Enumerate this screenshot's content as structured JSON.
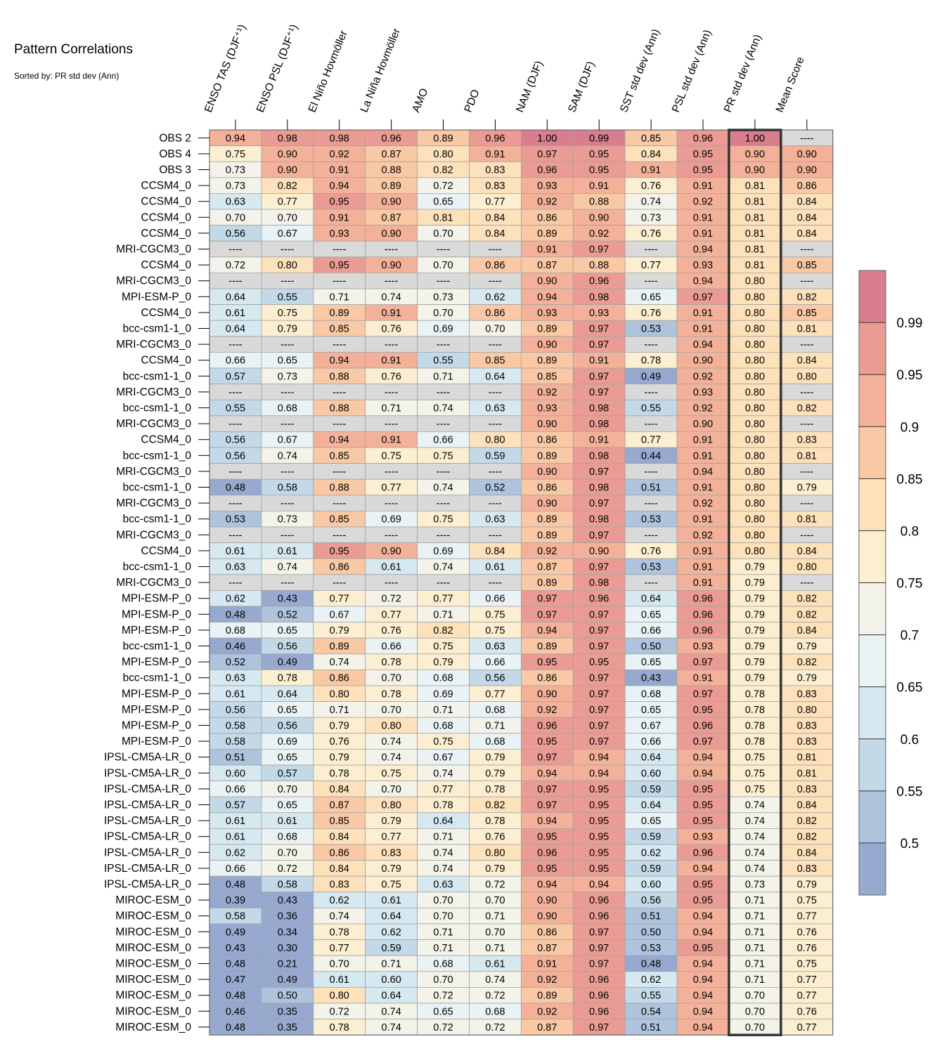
{
  "chart_data": {
    "type": "heatmap",
    "title": "Pattern Correlations",
    "subtitle": "Sorted by: PR std dev (Ann)",
    "missing_label": "----",
    "columns": [
      "ENSO TAS (DJF⁺¹)",
      "ENSO PSL (DJF⁺¹)",
      "El Niño Hovmöller",
      "La Niña Hovmöller",
      "AMO",
      "PDO",
      "NAM (DJF)",
      "SAM (DJF)",
      "SST std dev (Ann)",
      "PSL std dev (Ann)",
      "PR std dev (Ann)",
      "Mean Score"
    ],
    "highlighted_column": "PR std dev (Ann)",
    "rows": [
      "OBS 2",
      "OBS 4",
      "OBS 3",
      "CCSM4_0",
      "CCSM4_0",
      "CCSM4_0",
      "CCSM4_0",
      "MRI-CGCM3_0",
      "CCSM4_0",
      "MRI-CGCM3_0",
      "MPI-ESM-P_0",
      "CCSM4_0",
      "bcc-csm1-1_0",
      "MRI-CGCM3_0",
      "CCSM4_0",
      "bcc-csm1-1_0",
      "MRI-CGCM3_0",
      "bcc-csm1-1_0",
      "MRI-CGCM3_0",
      "CCSM4_0",
      "bcc-csm1-1_0",
      "MRI-CGCM3_0",
      "bcc-csm1-1_0",
      "MRI-CGCM3_0",
      "bcc-csm1-1_0",
      "MRI-CGCM3_0",
      "CCSM4_0",
      "bcc-csm1-1_0",
      "MRI-CGCM3_0",
      "MPI-ESM-P_0",
      "MPI-ESM-P_0",
      "MPI-ESM-P_0",
      "bcc-csm1-1_0",
      "MPI-ESM-P_0",
      "bcc-csm1-1_0",
      "MPI-ESM-P_0",
      "MPI-ESM-P_0",
      "MPI-ESM-P_0",
      "MPI-ESM-P_0",
      "IPSL-CM5A-LR_0",
      "IPSL-CM5A-LR_0",
      "IPSL-CM5A-LR_0",
      "IPSL-CM5A-LR_0",
      "IPSL-CM5A-LR_0",
      "IPSL-CM5A-LR_0",
      "IPSL-CM5A-LR_0",
      "IPSL-CM5A-LR_0",
      "IPSL-CM5A-LR_0",
      "MIROC-ESM_0",
      "MIROC-ESM_0",
      "MIROC-ESM_0",
      "MIROC-ESM_0",
      "MIROC-ESM_0",
      "MIROC-ESM_0",
      "MIROC-ESM_0",
      "MIROC-ESM_0",
      "MIROC-ESM_0"
    ],
    "values": [
      [
        0.94,
        0.98,
        0.98,
        0.96,
        0.89,
        0.96,
        1.0,
        0.99,
        0.85,
        0.96,
        1.0,
        null
      ],
      [
        0.75,
        0.9,
        0.92,
        0.87,
        0.8,
        0.91,
        0.97,
        0.95,
        0.84,
        0.95,
        0.9,
        0.9
      ],
      [
        0.73,
        0.9,
        0.91,
        0.88,
        0.82,
        0.83,
        0.96,
        0.95,
        0.91,
        0.95,
        0.9,
        0.9
      ],
      [
        0.73,
        0.82,
        0.94,
        0.89,
        0.72,
        0.83,
        0.93,
        0.91,
        0.76,
        0.91,
        0.81,
        0.86
      ],
      [
        0.63,
        0.77,
        0.95,
        0.9,
        0.65,
        0.77,
        0.92,
        0.88,
        0.74,
        0.92,
        0.81,
        0.84
      ],
      [
        0.7,
        0.7,
        0.91,
        0.87,
        0.81,
        0.84,
        0.86,
        0.9,
        0.73,
        0.91,
        0.81,
        0.84
      ],
      [
        0.56,
        0.67,
        0.93,
        0.9,
        0.7,
        0.84,
        0.89,
        0.92,
        0.76,
        0.91,
        0.81,
        0.84
      ],
      [
        null,
        null,
        null,
        null,
        null,
        null,
        0.91,
        0.97,
        null,
        0.94,
        0.81,
        null
      ],
      [
        0.72,
        0.8,
        0.95,
        0.9,
        0.7,
        0.86,
        0.87,
        0.88,
        0.77,
        0.93,
        0.81,
        0.85
      ],
      [
        null,
        null,
        null,
        null,
        null,
        null,
        0.9,
        0.96,
        null,
        0.94,
        0.8,
        null
      ],
      [
        0.64,
        0.55,
        0.71,
        0.74,
        0.73,
        0.62,
        0.94,
        0.98,
        0.65,
        0.97,
        0.8,
        0.82
      ],
      [
        0.61,
        0.75,
        0.89,
        0.91,
        0.7,
        0.86,
        0.93,
        0.93,
        0.76,
        0.91,
        0.8,
        0.85
      ],
      [
        0.64,
        0.79,
        0.85,
        0.76,
        0.69,
        0.7,
        0.89,
        0.97,
        0.53,
        0.91,
        0.8,
        0.81
      ],
      [
        null,
        null,
        null,
        null,
        null,
        null,
        0.9,
        0.97,
        null,
        0.94,
        0.8,
        null
      ],
      [
        0.66,
        0.65,
        0.94,
        0.91,
        0.55,
        0.85,
        0.89,
        0.91,
        0.78,
        0.9,
        0.8,
        0.84
      ],
      [
        0.57,
        0.73,
        0.88,
        0.76,
        0.71,
        0.64,
        0.85,
        0.97,
        0.49,
        0.92,
        0.8,
        0.8
      ],
      [
        null,
        null,
        null,
        null,
        null,
        null,
        0.92,
        0.97,
        null,
        0.93,
        0.8,
        null
      ],
      [
        0.55,
        0.68,
        0.88,
        0.71,
        0.74,
        0.63,
        0.93,
        0.98,
        0.55,
        0.92,
        0.8,
        0.82
      ],
      [
        null,
        null,
        null,
        null,
        null,
        null,
        0.9,
        0.98,
        null,
        0.9,
        0.8,
        null
      ],
      [
        0.56,
        0.67,
        0.94,
        0.91,
        0.66,
        0.8,
        0.86,
        0.91,
        0.77,
        0.91,
        0.8,
        0.83
      ],
      [
        0.56,
        0.74,
        0.85,
        0.75,
        0.75,
        0.59,
        0.89,
        0.98,
        0.44,
        0.91,
        0.8,
        0.81
      ],
      [
        null,
        null,
        null,
        null,
        null,
        null,
        0.9,
        0.97,
        null,
        0.94,
        0.8,
        null
      ],
      [
        0.48,
        0.58,
        0.88,
        0.77,
        0.74,
        0.52,
        0.86,
        0.98,
        0.51,
        0.91,
        0.8,
        0.79
      ],
      [
        null,
        null,
        null,
        null,
        null,
        null,
        0.9,
        0.97,
        null,
        0.92,
        0.8,
        null
      ],
      [
        0.53,
        0.73,
        0.85,
        0.69,
        0.75,
        0.63,
        0.89,
        0.98,
        0.53,
        0.91,
        0.8,
        0.81
      ],
      [
        null,
        null,
        null,
        null,
        null,
        null,
        0.89,
        0.97,
        null,
        0.92,
        0.8,
        null
      ],
      [
        0.61,
        0.61,
        0.95,
        0.9,
        0.69,
        0.84,
        0.92,
        0.9,
        0.76,
        0.91,
        0.8,
        0.84
      ],
      [
        0.63,
        0.74,
        0.86,
        0.61,
        0.74,
        0.61,
        0.87,
        0.97,
        0.53,
        0.91,
        0.79,
        0.8
      ],
      [
        null,
        null,
        null,
        null,
        null,
        null,
        0.89,
        0.98,
        null,
        0.91,
        0.79,
        null
      ],
      [
        0.62,
        0.43,
        0.77,
        0.72,
        0.77,
        0.66,
        0.97,
        0.96,
        0.64,
        0.96,
        0.79,
        0.82
      ],
      [
        0.48,
        0.52,
        0.67,
        0.77,
        0.71,
        0.75,
        0.97,
        0.97,
        0.65,
        0.96,
        0.79,
        0.82
      ],
      [
        0.68,
        0.65,
        0.79,
        0.76,
        0.82,
        0.75,
        0.94,
        0.97,
        0.66,
        0.96,
        0.79,
        0.84
      ],
      [
        0.46,
        0.56,
        0.89,
        0.66,
        0.75,
        0.63,
        0.89,
        0.97,
        0.5,
        0.93,
        0.79,
        0.79
      ],
      [
        0.52,
        0.49,
        0.74,
        0.78,
        0.79,
        0.66,
        0.95,
        0.95,
        0.65,
        0.97,
        0.79,
        0.82
      ],
      [
        0.63,
        0.78,
        0.86,
        0.7,
        0.68,
        0.56,
        0.86,
        0.97,
        0.43,
        0.91,
        0.79,
        0.79
      ],
      [
        0.61,
        0.64,
        0.8,
        0.78,
        0.69,
        0.77,
        0.9,
        0.97,
        0.68,
        0.97,
        0.78,
        0.83
      ],
      [
        0.56,
        0.65,
        0.71,
        0.7,
        0.71,
        0.68,
        0.92,
        0.97,
        0.65,
        0.95,
        0.78,
        0.8
      ],
      [
        0.58,
        0.56,
        0.79,
        0.8,
        0.68,
        0.71,
        0.96,
        0.97,
        0.67,
        0.96,
        0.78,
        0.83
      ],
      [
        0.58,
        0.69,
        0.76,
        0.74,
        0.75,
        0.68,
        0.95,
        0.97,
        0.66,
        0.97,
        0.78,
        0.83
      ],
      [
        0.51,
        0.65,
        0.79,
        0.74,
        0.67,
        0.79,
        0.97,
        0.94,
        0.64,
        0.94,
        0.75,
        0.81
      ],
      [
        0.6,
        0.57,
        0.78,
        0.75,
        0.74,
        0.79,
        0.94,
        0.94,
        0.6,
        0.94,
        0.75,
        0.81
      ],
      [
        0.66,
        0.7,
        0.84,
        0.7,
        0.77,
        0.78,
        0.97,
        0.95,
        0.59,
        0.95,
        0.75,
        0.83
      ],
      [
        0.57,
        0.65,
        0.87,
        0.8,
        0.78,
        0.82,
        0.97,
        0.95,
        0.64,
        0.95,
        0.74,
        0.84
      ],
      [
        0.61,
        0.61,
        0.85,
        0.79,
        0.64,
        0.78,
        0.94,
        0.95,
        0.65,
        0.95,
        0.74,
        0.82
      ],
      [
        0.61,
        0.68,
        0.84,
        0.77,
        0.71,
        0.76,
        0.95,
        0.95,
        0.59,
        0.93,
        0.74,
        0.82
      ],
      [
        0.62,
        0.7,
        0.86,
        0.83,
        0.74,
        0.8,
        0.96,
        0.95,
        0.62,
        0.96,
        0.74,
        0.84
      ],
      [
        0.66,
        0.72,
        0.84,
        0.79,
        0.74,
        0.79,
        0.95,
        0.95,
        0.59,
        0.94,
        0.74,
        0.83
      ],
      [
        0.48,
        0.58,
        0.83,
        0.75,
        0.63,
        0.72,
        0.94,
        0.94,
        0.6,
        0.95,
        0.73,
        0.79
      ],
      [
        0.39,
        0.43,
        0.62,
        0.61,
        0.7,
        0.7,
        0.9,
        0.96,
        0.56,
        0.95,
        0.71,
        0.75
      ],
      [
        0.58,
        0.36,
        0.74,
        0.64,
        0.7,
        0.71,
        0.9,
        0.96,
        0.51,
        0.94,
        0.71,
        0.77
      ],
      [
        0.49,
        0.34,
        0.78,
        0.62,
        0.71,
        0.7,
        0.86,
        0.97,
        0.5,
        0.94,
        0.71,
        0.76
      ],
      [
        0.43,
        0.3,
        0.77,
        0.59,
        0.71,
        0.71,
        0.87,
        0.97,
        0.53,
        0.95,
        0.71,
        0.76
      ],
      [
        0.48,
        0.21,
        0.7,
        0.71,
        0.68,
        0.61,
        0.91,
        0.97,
        0.48,
        0.94,
        0.71,
        0.75
      ],
      [
        0.47,
        0.49,
        0.61,
        0.6,
        0.7,
        0.74,
        0.92,
        0.96,
        0.62,
        0.94,
        0.71,
        0.77
      ],
      [
        0.48,
        0.5,
        0.8,
        0.64,
        0.72,
        0.72,
        0.89,
        0.96,
        0.55,
        0.94,
        0.7,
        0.77
      ],
      [
        0.46,
        0.35,
        0.72,
        0.74,
        0.65,
        0.68,
        0.92,
        0.96,
        0.54,
        0.94,
        0.7,
        0.76
      ],
      [
        0.48,
        0.35,
        0.78,
        0.74,
        0.72,
        0.72,
        0.87,
        0.97,
        0.51,
        0.94,
        0.7,
        0.77
      ]
    ],
    "colorbar": {
      "levels": [
        0.5,
        0.55,
        0.6,
        0.65,
        0.7,
        0.75,
        0.8,
        0.85,
        0.9,
        0.95,
        0.99
      ],
      "tick_labels": [
        "0.5",
        "0.55",
        "0.6",
        "0.65",
        "0.7",
        "0.75",
        "0.8",
        "0.85",
        "0.9",
        "0.95",
        "0.99"
      ],
      "colors": [
        "#97a9cf",
        "#aec3dc",
        "#c3d9e8",
        "#d6e8f0",
        "#e9f3f5",
        "#f3f3ea",
        "#fcefd1",
        "#fde1bb",
        "#f9c9a5",
        "#f4b199",
        "#ea9c94",
        "#d87e8e"
      ],
      "missing_color": "#d9d9d9"
    }
  }
}
